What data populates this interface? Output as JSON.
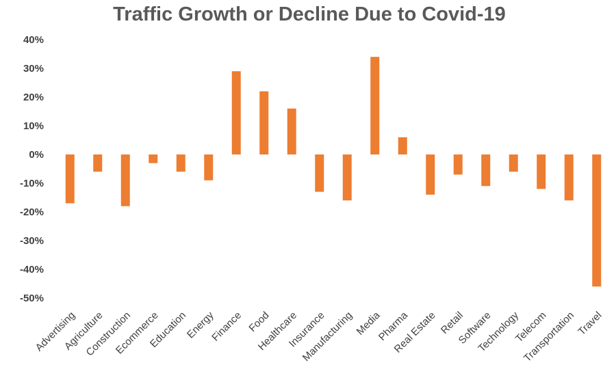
{
  "chart_data": {
    "type": "bar",
    "title": "Traffic Growth or Decline Due to Covid-19",
    "xlabel": "",
    "ylabel": "",
    "ylim": [
      -50,
      40
    ],
    "ytick_values": [
      40,
      30,
      20,
      10,
      0,
      -10,
      -20,
      -30,
      -40,
      -50
    ],
    "ytick_labels": [
      "40%",
      "30%",
      "20%",
      "10%",
      "0%",
      "-10%",
      "-20%",
      "-30%",
      "-40%",
      "-50%"
    ],
    "grid": false,
    "legend": "none",
    "bar_color": "#ED7D31",
    "categories": [
      "Advertising",
      "Agriculture",
      "Construction",
      "Ecommerce",
      "Education",
      "Energy",
      "Finance",
      "Food",
      "Healthcare",
      "Insurance",
      "Manufacturing",
      "Media",
      "Pharma",
      "Real Estate",
      "Retail",
      "Software",
      "Technology",
      "Telecom",
      "Transportation",
      "Travel"
    ],
    "values": [
      -17,
      -6,
      -18,
      -3,
      -6,
      -9,
      29,
      22,
      16,
      -13,
      -16,
      34,
      6,
      -14,
      -7,
      -11,
      -6,
      -12,
      -16,
      -46
    ]
  }
}
